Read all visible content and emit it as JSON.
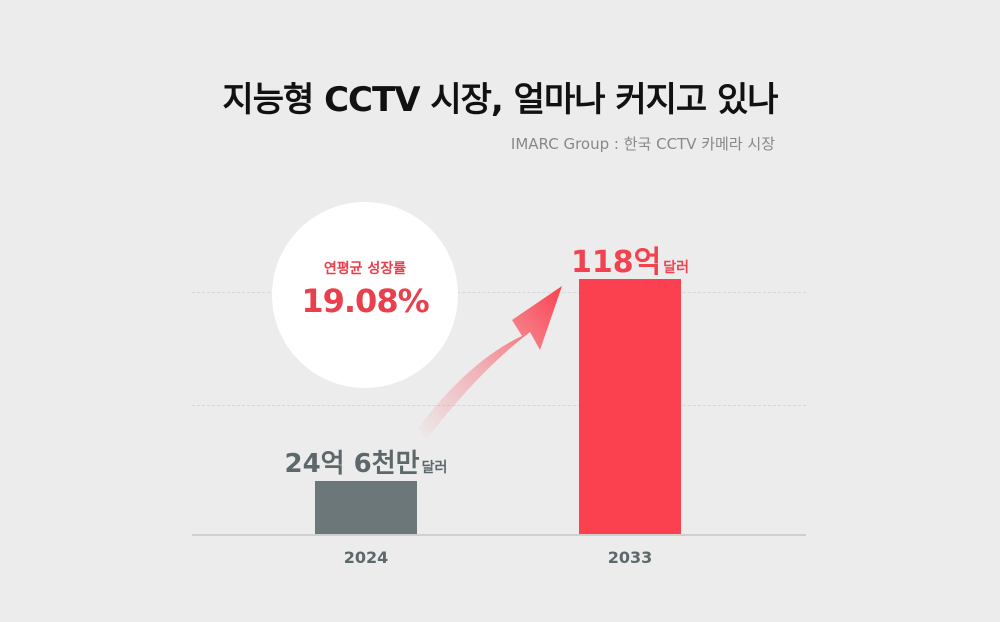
{
  "title": "지능형 CCTV 시장, 얼마나 커지고 있나",
  "source": "IMARC Group : 한국 CCTV 카메라 시장",
  "growth": {
    "label": "연평균 성장률",
    "value": "19.08%"
  },
  "colors": {
    "bar_2024": "#6c7779",
    "bar_2033": "#fb4150",
    "value_2024": "#5d686b",
    "value_2033": "#f2414f"
  },
  "chart_data": {
    "type": "bar",
    "categories": [
      "2024",
      "2033"
    ],
    "values": [
      24.6,
      118
    ],
    "value_labels": [
      "24억 6천만",
      "118억"
    ],
    "unit": "달러",
    "ylim": [
      0,
      118
    ],
    "grid": true
  }
}
